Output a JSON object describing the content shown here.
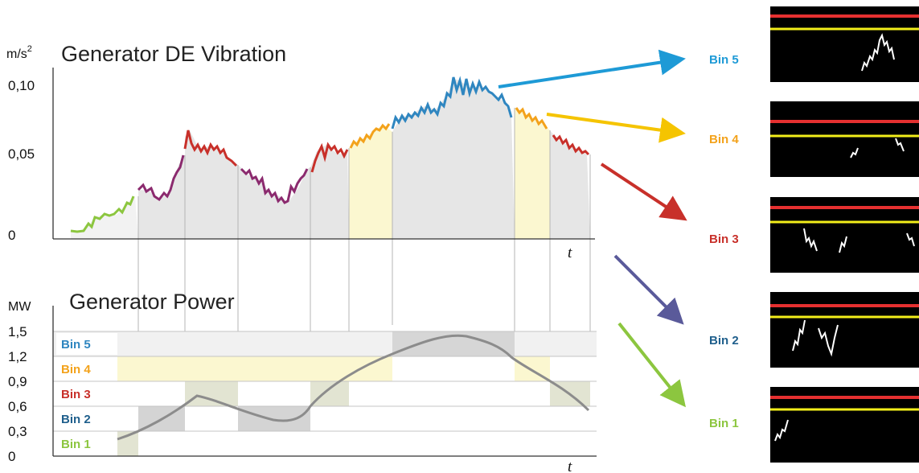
{
  "vibration_chart": {
    "title": "Generator DE Vibration",
    "unit": "m/s",
    "unit_exponent": "2",
    "y_ticks": [
      "0,10",
      "0,05",
      "0"
    ],
    "x_label": "t"
  },
  "power_chart": {
    "title": "Generator Power",
    "unit": "MW",
    "y_ticks": [
      "1,5",
      "1,2",
      "0,9",
      "0,6",
      "0,3",
      "0"
    ],
    "x_label": "t",
    "bins": [
      {
        "label": "Bin 5",
        "color": "#2f86c0",
        "fill": "#e8e8e8"
      },
      {
        "label": "Bin 4",
        "color": "#f3a21b",
        "fill": "#fbf7d0"
      },
      {
        "label": "Bin 3",
        "color": "#c8302a",
        "fill": "#e8e8e8"
      },
      {
        "label": "Bin 2",
        "color": "#1f5f8c",
        "fill": "#e8e8e8"
      },
      {
        "label": "Bin 1",
        "color": "#8cc63f",
        "fill": "#f2f2f2"
      }
    ]
  },
  "right_panels": [
    {
      "label": "Bin 5",
      "color": "#1e9ad6",
      "arrow_color": "#1e9ad6"
    },
    {
      "label": "Bin 4",
      "color": "#f3a21b",
      "arrow_color": "#f5c400"
    },
    {
      "label": "Bin 3",
      "color": "#c8302a",
      "arrow_color": "#c8302a"
    },
    {
      "label": "Bin 2",
      "color": "#1f5f8c",
      "arrow_color": "#5a5a9a"
    },
    {
      "label": "Bin 1",
      "color": "#8cc63f",
      "arrow_color": "#8cc63f"
    }
  ],
  "colors": {
    "limit_upper": "#e53030",
    "limit_lower": "#f2ee1a",
    "thumb_bg": "#000000",
    "power_curve": "#8c8c8c"
  }
}
